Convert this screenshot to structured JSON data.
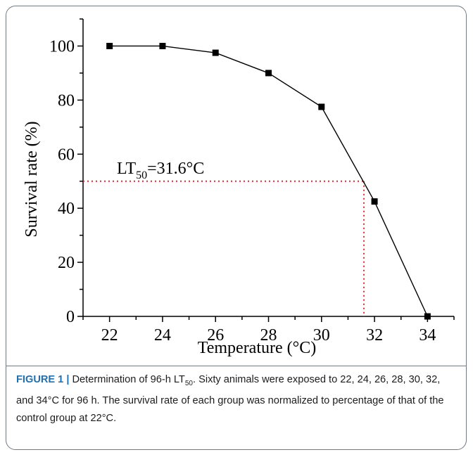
{
  "chart_data": {
    "type": "line",
    "x": [
      22,
      24,
      26,
      28,
      30,
      32,
      34
    ],
    "series": [
      {
        "values": [
          100,
          100,
          97.5,
          90,
          77.5,
          42.5,
          0
        ]
      }
    ],
    "xlabel": "Temperature (°C)",
    "ylabel": "Survival rate (%)",
    "xlim": [
      21,
      35
    ],
    "ylim": [
      0,
      110
    ],
    "xticks": [
      22,
      24,
      26,
      28,
      30,
      32,
      34
    ],
    "yticks": [
      0,
      20,
      40,
      60,
      80,
      100
    ],
    "grid": false,
    "marker": "square",
    "line_color": "#000000",
    "reference": {
      "x": 31.6,
      "y": 50,
      "color": "#e0282e",
      "style": "dotted",
      "label_prefix": "LT",
      "label_subscript": "50",
      "label_suffix": "=31.6°C"
    }
  },
  "caption": {
    "label": "FIGURE 1 |",
    "text_before_sub": " Determination of 96-h LT",
    "sub": "50",
    "text_after_sub": ". Sixty animals were exposed to 22, 24, 26, 28, 30, 32, and 34°C for 96 h. The survival rate of each group was normalized to percentage of that of the control group at 22°C."
  }
}
